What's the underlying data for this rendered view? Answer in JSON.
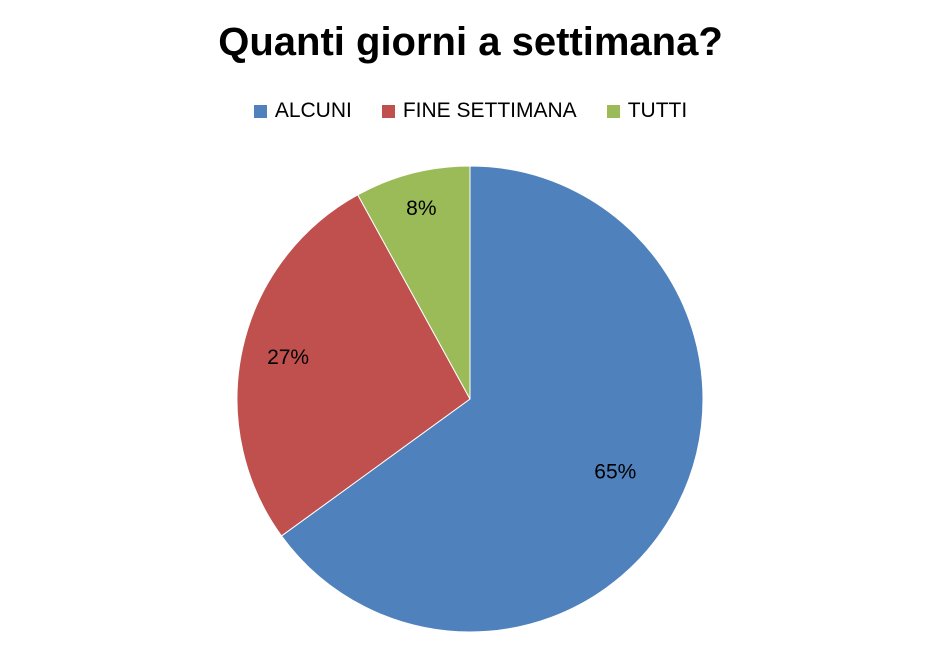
{
  "chart_data": {
    "type": "pie",
    "title": "Quanti giorni a settimana?",
    "legend_position": "top",
    "slices": [
      {
        "label": "ALCUNI",
        "value": 65,
        "display": "65%",
        "color": "#4F81BD"
      },
      {
        "label": "FINE SETTIMANA",
        "value": 27,
        "display": "27%",
        "color": "#C0504D"
      },
      {
        "label": "TUTTI",
        "value": 8,
        "display": "8%",
        "color": "#9BBB59"
      }
    ]
  }
}
